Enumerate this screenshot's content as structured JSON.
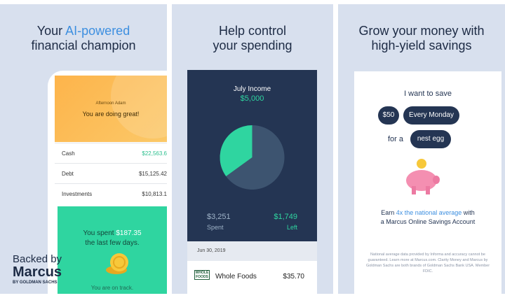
{
  "panels": [
    {
      "heading": {
        "before": "Your ",
        "highlight": "AI-powered",
        "after": "financial champion"
      },
      "greeting": "Afternoon Adam",
      "status": "You are doing great!",
      "accounts": [
        [
          "Cash",
          "$22,563.6"
        ],
        [
          "Debt",
          "$15,125.42"
        ],
        [
          "Investments",
          "$10,813.1"
        ]
      ],
      "spent": {
        "before": "You spent ",
        "amount": "$187.35",
        "after": "the last few days."
      },
      "track": "You are on track.",
      "brand": {
        "backed": "Backed by",
        "name": "Marcus",
        "sub": "BY GOLDMAN SACHS"
      }
    },
    {
      "heading": [
        "Help control",
        "your spending"
      ],
      "income_label": "July Income",
      "income": "$5,000",
      "pie": {
        "spent": 3251,
        "left": 1749
      },
      "spent_amount": "$3,251",
      "spent_label": "Spent",
      "left_amount": "$1,749",
      "left_label": "Left",
      "date": "Jun 30, 2019",
      "logo": [
        "WHOLE",
        "FOODS"
      ],
      "merchant": "Whole Foods",
      "amount": "$35.70"
    },
    {
      "heading": [
        "Grow your money with",
        "high-yield savings"
      ],
      "want": "I want to save",
      "amount": "$50",
      "frequency": "Every Monday",
      "for": "for a",
      "goal": "nest egg",
      "earn": {
        "before": "Earn ",
        "highlight": "4x the national average",
        "after": " with",
        "line2": "a Marcus Online Savings Account"
      },
      "fine_print": "National average data provided by Informa and accuracy cannot be guaranteed. Learn more at Marcus.com. Clarity Money and Marcus by Goldman Sachs are both brands of Goldman Sachs Bank USA. Member FDIC."
    }
  ]
}
